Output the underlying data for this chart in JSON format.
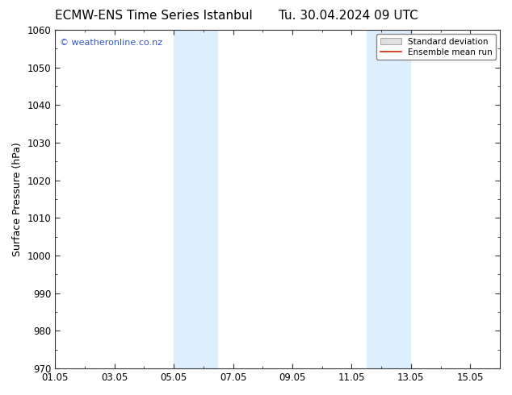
{
  "title_left": "ECMW-ENS Time Series Istanbul",
  "title_right": "Tu. 30.04.2024 09 UTC",
  "ylabel": "Surface Pressure (hPa)",
  "ylim": [
    970,
    1060
  ],
  "yticks": [
    970,
    980,
    990,
    1000,
    1010,
    1020,
    1030,
    1040,
    1050,
    1060
  ],
  "xtick_labels": [
    "01.05",
    "03.05",
    "05.05",
    "07.05",
    "09.05",
    "11.05",
    "13.05",
    "15.05"
  ],
  "xtick_positions": [
    0,
    2,
    4,
    6,
    8,
    10,
    12,
    14
  ],
  "xlim": [
    0,
    15
  ],
  "shaded_bands": [
    {
      "x_start": 4.0,
      "x_end": 5.5
    },
    {
      "x_start": 10.5,
      "x_end": 12.0
    }
  ],
  "shade_color": "#ddeeff",
  "watermark": "© weatheronline.co.nz",
  "watermark_color": "#3355cc",
  "legend_std_label": "Standard deviation",
  "legend_mean_label": "Ensemble mean run",
  "legend_std_facecolor": "#e0e0e0",
  "legend_std_edgecolor": "#aaaaaa",
  "legend_mean_color": "#cc2200",
  "background_color": "#ffffff",
  "plot_bg_color": "#ffffff",
  "title_fontsize": 11,
  "axis_label_fontsize": 9,
  "tick_fontsize": 8.5
}
